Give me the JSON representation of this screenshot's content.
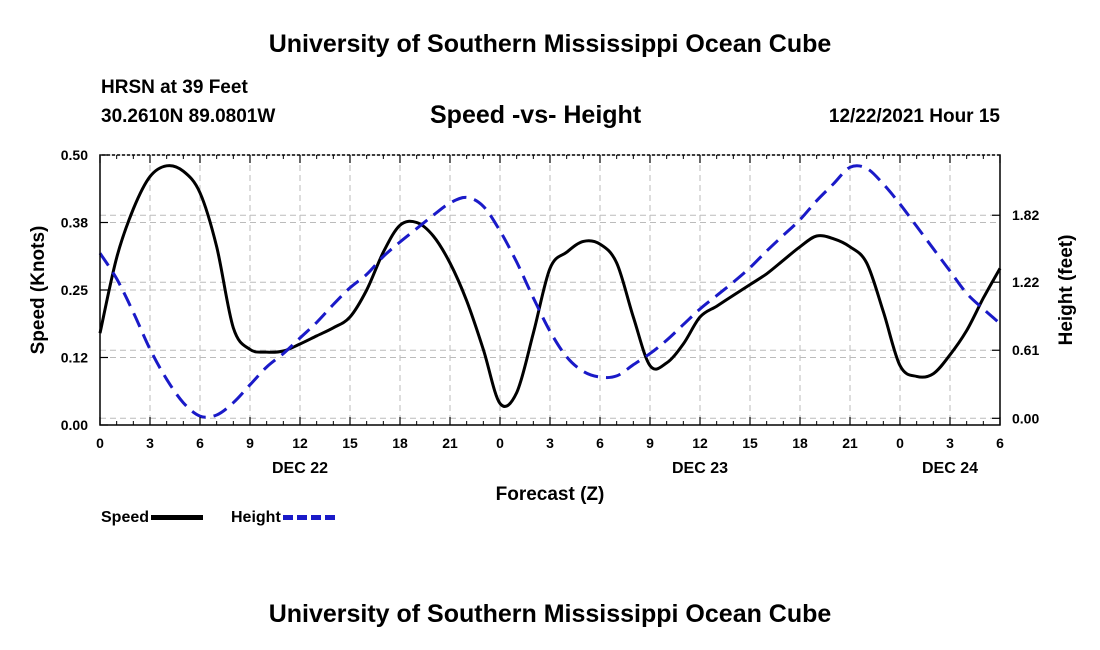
{
  "header": {
    "main_title": "University of Southern Mississippi Ocean Cube",
    "station_name": "HRSN at 39 Feet",
    "station_coords": "30.2610N  89.0801W",
    "chart_title": "Speed -vs- Height",
    "run_time": "12/22/2021 Hour 15"
  },
  "footer": {
    "title": "University of Southern Mississippi Ocean Cube"
  },
  "legend": {
    "speed_label": "Speed",
    "height_label": "Height"
  },
  "colors": {
    "speed": "#000000",
    "height": "#1a1ac8",
    "grid": "#bbbbbb"
  },
  "chart_data": {
    "type": "line",
    "title": "Speed -vs- Height",
    "xlabel": "Forecast (Z)",
    "ylabel": "Speed (Knots)",
    "y2label": "Height (feet)",
    "x_range": [
      0,
      54
    ],
    "ylim": [
      0,
      0.5
    ],
    "y2lim": [
      -0.06,
      2.36
    ],
    "x_ticks": [
      {
        "x": 0,
        "label": "0"
      },
      {
        "x": 3,
        "label": "3"
      },
      {
        "x": 6,
        "label": "6"
      },
      {
        "x": 9,
        "label": "9"
      },
      {
        "x": 12,
        "label": "12"
      },
      {
        "x": 15,
        "label": "15"
      },
      {
        "x": 18,
        "label": "18"
      },
      {
        "x": 21,
        "label": "21"
      },
      {
        "x": 24,
        "label": "0"
      },
      {
        "x": 27,
        "label": "3"
      },
      {
        "x": 30,
        "label": "6"
      },
      {
        "x": 33,
        "label": "9"
      },
      {
        "x": 36,
        "label": "12"
      },
      {
        "x": 39,
        "label": "15"
      },
      {
        "x": 42,
        "label": "18"
      },
      {
        "x": 45,
        "label": "21"
      },
      {
        "x": 48,
        "label": "0"
      },
      {
        "x": 51,
        "label": "3"
      },
      {
        "x": 54,
        "label": "6"
      }
    ],
    "date_labels": [
      {
        "x": 12,
        "label": "DEC 22"
      },
      {
        "x": 36,
        "label": "DEC 23"
      },
      {
        "x": 51,
        "label": "DEC 24"
      }
    ],
    "y_ticks": [
      {
        "value": 0,
        "label": "0.00"
      },
      {
        "value": 0.125,
        "label": "0.12"
      },
      {
        "value": 0.25,
        "label": "0.25"
      },
      {
        "value": 0.375,
        "label": "0.38"
      },
      {
        "value": 0.5,
        "label": "0.50"
      }
    ],
    "y2_ticks": [
      {
        "value": 0,
        "label": "0.00"
      },
      {
        "value": 0.61,
        "label": "0.61"
      },
      {
        "value": 1.22,
        "label": "1.22"
      },
      {
        "value": 1.82,
        "label": "1.82"
      }
    ],
    "series": [
      {
        "name": "Speed",
        "axis": "left",
        "x": [
          0,
          1,
          2,
          3,
          4,
          5,
          6,
          7,
          8,
          9,
          10,
          11,
          12,
          13,
          14,
          15,
          16,
          17,
          18,
          19,
          20,
          21,
          22,
          23,
          24,
          25,
          26,
          27,
          28,
          29,
          30,
          31,
          32,
          33,
          34,
          35,
          36,
          37,
          38,
          39,
          40,
          41,
          42,
          43,
          44,
          45,
          46,
          47,
          48,
          49,
          50,
          51,
          52,
          53,
          54
        ],
        "values": [
          0.17,
          0.31,
          0.4,
          0.46,
          0.48,
          0.47,
          0.43,
          0.33,
          0.18,
          0.14,
          0.135,
          0.137,
          0.15,
          0.165,
          0.18,
          0.2,
          0.25,
          0.32,
          0.37,
          0.375,
          0.35,
          0.3,
          0.23,
          0.14,
          0.04,
          0.06,
          0.17,
          0.29,
          0.32,
          0.34,
          0.335,
          0.3,
          0.2,
          0.11,
          0.115,
          0.15,
          0.2,
          0.22,
          0.24,
          0.26,
          0.28,
          0.305,
          0.33,
          0.35,
          0.345,
          0.33,
          0.3,
          0.21,
          0.11,
          0.09,
          0.095,
          0.13,
          0.175,
          0.235,
          0.29
        ]
      },
      {
        "name": "Height",
        "axis": "right",
        "x": [
          0,
          1,
          2,
          3,
          4,
          5,
          6,
          7,
          8,
          9,
          10,
          11,
          12,
          13,
          14,
          15,
          16,
          17,
          18,
          19,
          20,
          21,
          22,
          23,
          24,
          25,
          26,
          27,
          28,
          29,
          30,
          31,
          32,
          33,
          34,
          35,
          36,
          37,
          38,
          39,
          40,
          41,
          42,
          43,
          44,
          45,
          46,
          47,
          48,
          49,
          50,
          51,
          52,
          53,
          54
        ],
        "values": [
          1.48,
          1.25,
          0.95,
          0.62,
          0.35,
          0.14,
          0.02,
          0.03,
          0.14,
          0.3,
          0.46,
          0.58,
          0.72,
          0.86,
          1.02,
          1.17,
          1.29,
          1.45,
          1.58,
          1.7,
          1.82,
          1.93,
          1.98,
          1.9,
          1.68,
          1.4,
          1.08,
          0.78,
          0.55,
          0.42,
          0.37,
          0.38,
          0.48,
          0.58,
          0.7,
          0.84,
          0.98,
          1.1,
          1.22,
          1.35,
          1.5,
          1.64,
          1.78,
          1.95,
          2.1,
          2.25,
          2.24,
          2.1,
          1.92,
          1.72,
          1.52,
          1.32,
          1.12,
          0.98,
          0.85
        ]
      }
    ]
  }
}
